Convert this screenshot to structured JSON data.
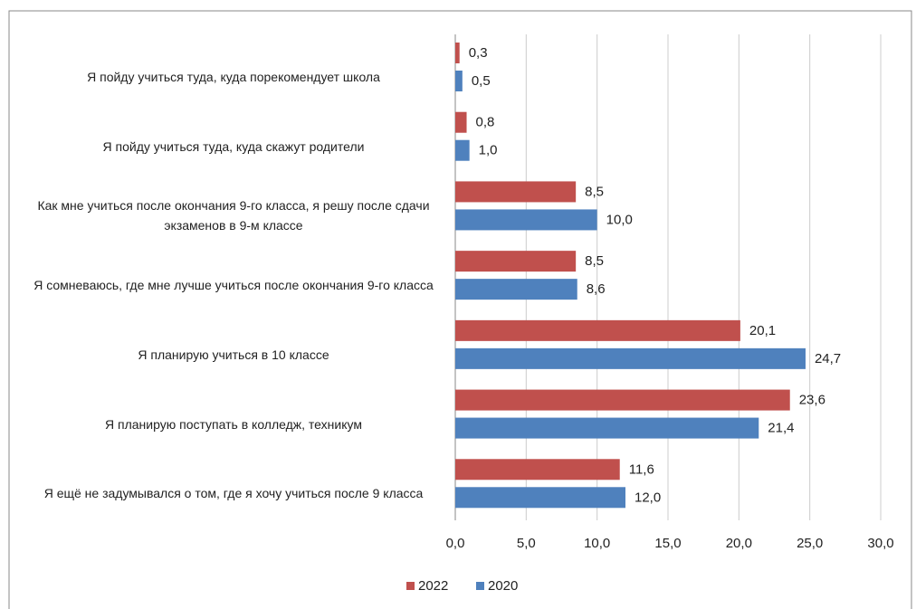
{
  "chart_data": {
    "type": "barh",
    "categories": [
      "Я пойду учиться туда, куда порекомендует школа",
      "Я пойду учиться туда, куда скажут родители",
      "Как мне учиться после окончания 9-го класса, я решу после сдачи экзаменов в 9-м классе",
      "Я сомневаюсь, где мне лучше учиться после окончания 9-го класса",
      "Я планирую учиться в 10 классе",
      "Я планирую поступать в колледж, техникум",
      "Я ещё не задумывался о том, где я хочу учиться после 9 класса"
    ],
    "series": [
      {
        "name": "2022",
        "color": "#c0504d",
        "values": [
          0.3,
          0.8,
          8.5,
          8.5,
          20.1,
          23.6,
          11.6
        ],
        "value_labels": [
          "0,3",
          "0,8",
          "8,5",
          "8,5",
          "20,1",
          "23,6",
          "11,6"
        ]
      },
      {
        "name": "2020",
        "color": "#4f81bd",
        "values": [
          0.5,
          1.0,
          10.0,
          8.6,
          24.7,
          21.4,
          12.0
        ],
        "value_labels": [
          "0,5",
          "1,0",
          "10,0",
          "8,6",
          "24,7",
          "21,4",
          "12,0"
        ]
      }
    ],
    "xlim": [
      0,
      30
    ],
    "xticks": [
      {
        "value": 0,
        "label": "0,0"
      },
      {
        "value": 5,
        "label": "5,0"
      },
      {
        "value": 10,
        "label": "10,0"
      },
      {
        "value": 15,
        "label": "15,0"
      },
      {
        "value": 20,
        "label": "20,0"
      },
      {
        "value": 25,
        "label": "25,0"
      },
      {
        "value": 30,
        "label": "30,0"
      }
    ],
    "grid": true,
    "legend": "bottom"
  }
}
